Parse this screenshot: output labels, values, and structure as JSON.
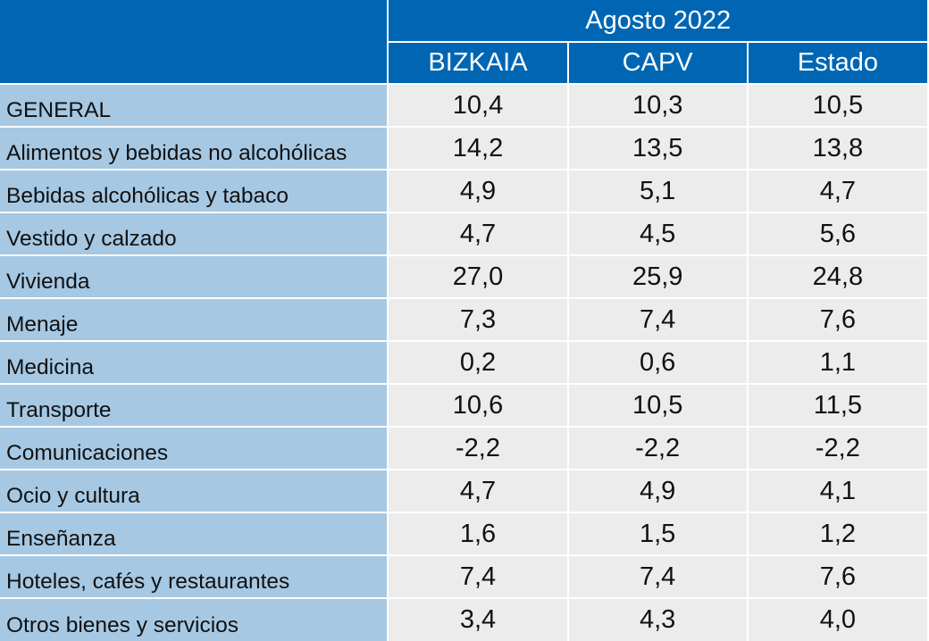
{
  "chart_data": {
    "type": "table",
    "title": "",
    "period": "Agosto 2022",
    "columns": [
      "BIZKAIA",
      "CAPV",
      "Estado"
    ],
    "rows": [
      {
        "label": "GENERAL",
        "values": [
          "10,4",
          "10,3",
          "10,5"
        ]
      },
      {
        "label": "Alimentos y bebidas no alcohólicas",
        "values": [
          "14,2",
          "13,5",
          "13,8"
        ]
      },
      {
        "label": "Bebidas alcohólicas y tabaco",
        "values": [
          "4,9",
          "5,1",
          "4,7"
        ]
      },
      {
        "label": "Vestido y calzado",
        "values": [
          "4,7",
          "4,5",
          "5,6"
        ]
      },
      {
        "label": "Vivienda",
        "values": [
          "27,0",
          "25,9",
          "24,8"
        ]
      },
      {
        "label": "Menaje",
        "values": [
          "7,3",
          "7,4",
          "7,6"
        ]
      },
      {
        "label": "Medicina",
        "values": [
          "0,2",
          "0,6",
          "1,1"
        ]
      },
      {
        "label": "Transporte",
        "values": [
          "10,6",
          "10,5",
          "11,5"
        ]
      },
      {
        "label": "Comunicaciones",
        "values": [
          "-2,2",
          "-2,2",
          "-2,2"
        ]
      },
      {
        "label": "Ocio y cultura",
        "values": [
          "4,7",
          "4,9",
          "4,1"
        ]
      },
      {
        "label": "Enseñanza",
        "values": [
          "1,6",
          "1,5",
          "1,2"
        ]
      },
      {
        "label": "Hoteles, cafés y restaurantes",
        "values": [
          "7,4",
          "7,4",
          "7,6"
        ]
      },
      {
        "label": "Otros bienes y servicios",
        "values": [
          "3,4",
          "4,3",
          "4,0"
        ]
      }
    ]
  },
  "colors": {
    "header_bg": "#0066b3",
    "header_text": "#ffffff",
    "label_bg": "#a6c8e3",
    "value_bg": "#ececec",
    "text": "#111111"
  }
}
